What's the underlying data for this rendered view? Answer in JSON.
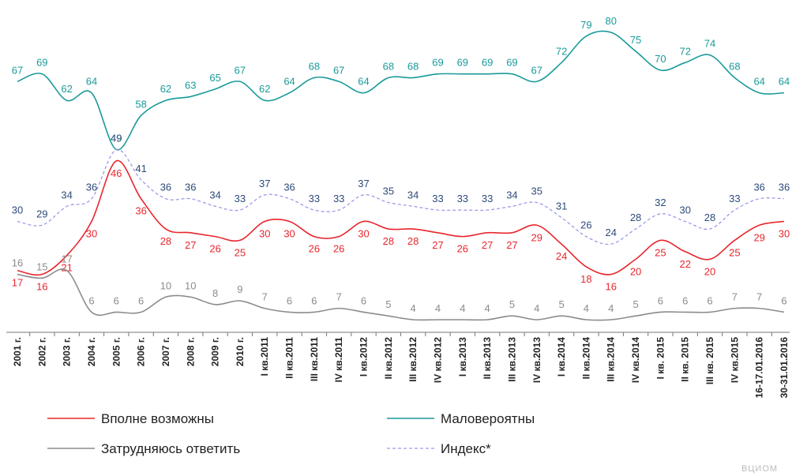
{
  "chart_data": {
    "type": "line",
    "categories": [
      "2001 г.",
      "2002 г.",
      "2003 г.",
      "2004 г.",
      "2005 г.",
      "2006 г.",
      "2007 г.",
      "2008 г.",
      "2009 г.",
      "2010 г.",
      "I кв.2011",
      "II кв.2011",
      "III кв.2011",
      "IV кв.2011",
      "I кв.2012",
      "II кв.2012",
      "III кв.2012",
      "IV кв.2012",
      "I кв.2013",
      "II кв.2013",
      "III кв.2013",
      "IV кв.2013",
      "I кв.2014",
      "II кв.2014",
      "III кв.2014",
      "IV кв.2014",
      "I кв. 2015",
      "II кв. 2015",
      "III кв. 2015",
      "IV кв.2015",
      "16-17.01.2016",
      "30-31.01.2016"
    ],
    "series": [
      {
        "name": "Вполне возможны",
        "color": "#e8262d",
        "label_pos": "below",
        "values": [
          17,
          16,
          21,
          30,
          46,
          36,
          28,
          27,
          26,
          25,
          30,
          30,
          26,
          26,
          30,
          28,
          28,
          27,
          26,
          27,
          27,
          29,
          24,
          18,
          16,
          20,
          25,
          22,
          20,
          25,
          29,
          30
        ]
      },
      {
        "name": "Маловероятны",
        "color": "#1a9a9a",
        "label_pos": "above",
        "values": [
          67,
          69,
          62,
          64,
          49,
          58,
          62,
          63,
          65,
          67,
          62,
          64,
          68,
          67,
          64,
          68,
          68,
          69,
          69,
          69,
          69,
          67,
          72,
          79,
          80,
          75,
          70,
          72,
          74,
          68,
          64,
          64
        ]
      },
      {
        "name": "Затрудняюсь ответить",
        "color": "#8c8c8c",
        "label_pos": "above",
        "values": [
          16,
          15,
          17,
          6,
          6,
          6,
          10,
          10,
          8,
          9,
          7,
          6,
          6,
          7,
          6,
          5,
          4,
          4,
          4,
          4,
          5,
          4,
          5,
          4,
          4,
          5,
          6,
          6,
          6,
          7,
          7,
          6
        ]
      },
      {
        "name": "Индекс*",
        "color": "#9b9be8",
        "label_color": "#2d4a7a",
        "dashed": true,
        "label_pos": "above",
        "values": [
          30,
          29,
          34,
          36,
          49,
          41,
          36,
          36,
          34,
          33,
          37,
          36,
          33,
          33,
          37,
          35,
          34,
          33,
          33,
          33,
          34,
          35,
          31,
          26,
          24,
          28,
          32,
          30,
          28,
          33,
          36,
          36
        ]
      }
    ],
    "logo_text": "ВЦИОМ"
  }
}
